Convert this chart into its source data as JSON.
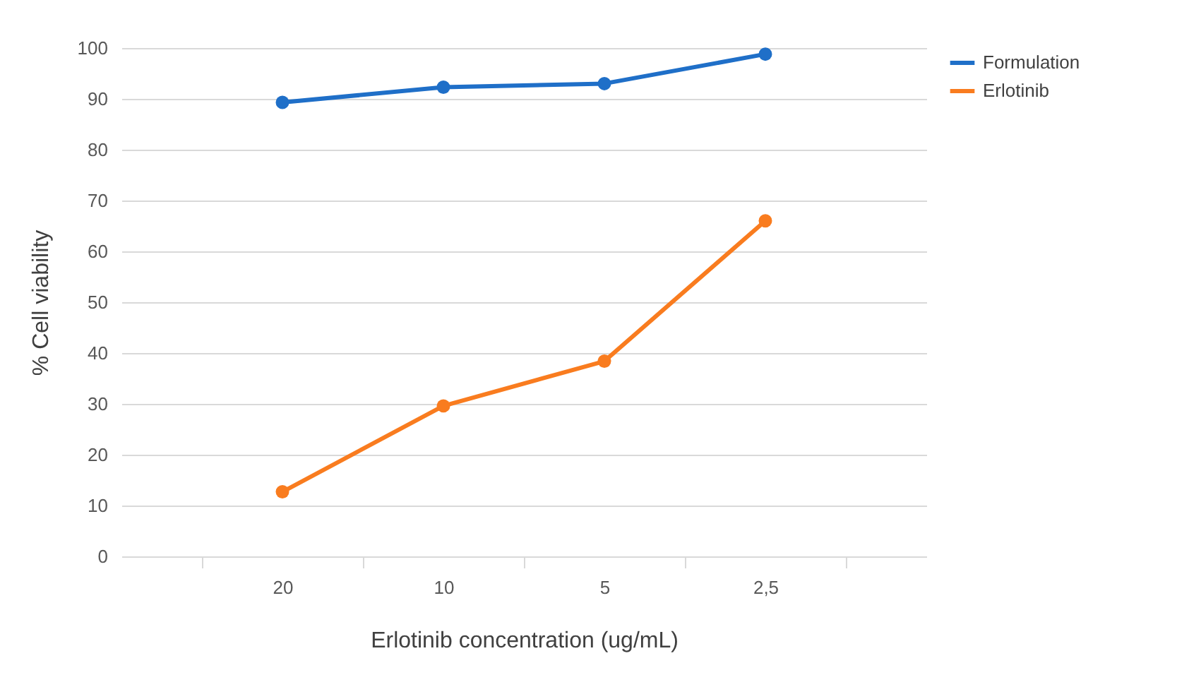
{
  "chart_data": {
    "type": "line",
    "xlabel": "Erlotinib concentration (ug/mL)",
    "ylabel": "% Cell viability",
    "categories": [
      "20",
      "10",
      "5",
      "2,5"
    ],
    "series": [
      {
        "name": "Formulation",
        "color": "#1f6fc8",
        "values": [
          89.3,
          92.3,
          93,
          98.8
        ]
      },
      {
        "name": "Erlotinib",
        "color": "#f97c1f",
        "values": [
          12.7,
          29.6,
          38.4,
          66
        ]
      }
    ],
    "ylim": [
      0,
      100
    ],
    "yticks": [
      0,
      10,
      20,
      30,
      40,
      50,
      60,
      70,
      80,
      90,
      100
    ],
    "grid": "y",
    "legend": "right",
    "marker": "circle",
    "line_style": "solid"
  }
}
